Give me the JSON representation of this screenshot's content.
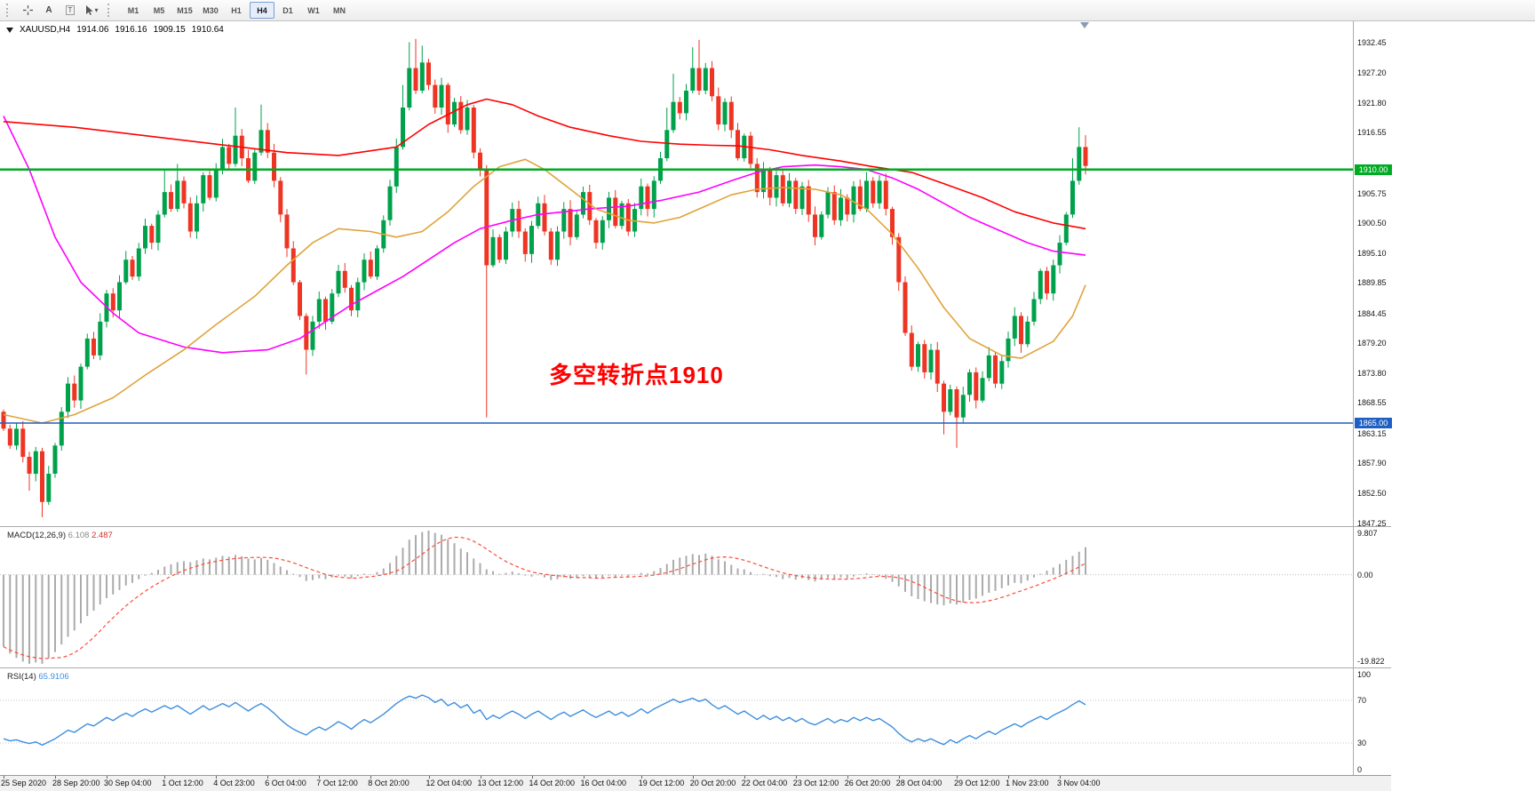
{
  "toolbar": {
    "tool_a": "A",
    "tool_t": "T",
    "dropdown_caret": "▾",
    "timeframes": [
      "M1",
      "M5",
      "M15",
      "M30",
      "H1",
      "H4",
      "D1",
      "W1",
      "MN"
    ],
    "active_timeframe": "H4"
  },
  "chart": {
    "title": {
      "symbol": "XAUUSD,H4",
      "open": "1914.06",
      "high": "1916.16",
      "low": "1909.15",
      "close": "1910.64"
    },
    "annotation": "多空转折点1910",
    "hlines": [
      {
        "price": 1910.0,
        "label": "1910.00",
        "color": "#00AB24"
      },
      {
        "price": 1865.0,
        "label": "1865.00",
        "color": "#1E5FC4"
      }
    ]
  },
  "price_axis": {
    "ticks": [
      "1932.45",
      "1927.20",
      "1921.80",
      "1916.55",
      "1905.75",
      "1900.50",
      "1895.10",
      "1889.85",
      "1884.45",
      "1879.20",
      "1873.80",
      "1868.55",
      "1863.15",
      "1857.90",
      "1852.50",
      "1847.25"
    ]
  },
  "time_axis": {
    "labels": [
      {
        "t": "25 Sep 2020",
        "bar": 0
      },
      {
        "t": "28 Sep 20:00",
        "bar": 8
      },
      {
        "t": "30 Sep 04:00",
        "bar": 16
      },
      {
        "t": "1 Oct 12:00",
        "bar": 25
      },
      {
        "t": "4 Oct 23:00",
        "bar": 33
      },
      {
        "t": "6 Oct 04:00",
        "bar": 41
      },
      {
        "t": "7 Oct 12:00",
        "bar": 49
      },
      {
        "t": "8 Oct 20:00",
        "bar": 57
      },
      {
        "t": "12 Oct 04:00",
        "bar": 66
      },
      {
        "t": "13 Oct 12:00",
        "bar": 74
      },
      {
        "t": "14 Oct 20:00",
        "bar": 82
      },
      {
        "t": "16 Oct 04:00",
        "bar": 90
      },
      {
        "t": "19 Oct 12:00",
        "bar": 99
      },
      {
        "t": "20 Oct 20:00",
        "bar": 107
      },
      {
        "t": "22 Oct 04:00",
        "bar": 115
      },
      {
        "t": "23 Oct 12:00",
        "bar": 123
      },
      {
        "t": "26 Oct 20:00",
        "bar": 131
      },
      {
        "t": "28 Oct 04:00",
        "bar": 139
      },
      {
        "t": "29 Oct 12:00",
        "bar": 148
      },
      {
        "t": "1 Nov 23:00",
        "bar": 156
      },
      {
        "t": "3 Nov 04:00",
        "bar": 164
      }
    ]
  },
  "macd_panel": {
    "label": "MACD(12,26,9)",
    "main_value": "6.108",
    "signal_value": "2.487",
    "axis": {
      "max": "9.807",
      "zero": "0.00",
      "min": "-19.822"
    }
  },
  "rsi_panel": {
    "label": "RSI(14)",
    "value": "65.9106",
    "axis": [
      {
        "t": "100",
        "v": 100
      },
      {
        "t": "70",
        "v": 70
      },
      {
        "t": "30",
        "v": 30
      },
      {
        "t": "0",
        "v": 0
      }
    ]
  },
  "colors": {
    "candle_up": "#00A14B",
    "candle_down": "#EE3524",
    "ma_red": "#FF0000",
    "ma_magenta": "#FF00FF",
    "ma_orange": "#DFA33C",
    "macd_hist": "#ABABAB",
    "macd_signal": "#FF4A3A",
    "rsi_line": "#3E8EDE",
    "annotation": "#FF0000"
  },
  "chart_data": {
    "type": "candlestick",
    "symbol": "XAUUSD",
    "period": "H4",
    "price_top": 1936.3,
    "price_bottom": 1846.7,
    "ohlc_current": [
      1914.06,
      1916.16,
      1909.15,
      1910.64
    ],
    "hline_prices": [
      1910.0,
      1865.0
    ],
    "first_open": 1867,
    "closes": [
      1864,
      1861,
      1864,
      1859,
      1856,
      1860,
      1851,
      1856,
      1861,
      1867,
      1872,
      1869,
      1875,
      1880,
      1877,
      1883,
      1888,
      1885,
      1890,
      1894,
      1891,
      1896,
      1900,
      1897,
      1902,
      1906,
      1903,
      1908,
      1904,
      1899,
      1904,
      1909,
      1905,
      1910,
      1914,
      1911,
      1916,
      1912,
      1908,
      1913,
      1917,
      1913,
      1908,
      1902,
      1896,
      1890,
      1884,
      1878,
      1883,
      1887,
      1883,
      1888,
      1892,
      1889,
      1885,
      1890,
      1894,
      1891,
      1896,
      1901,
      1907,
      1914,
      1921,
      1928,
      1924,
      1929,
      1925,
      1921,
      1925,
      1918,
      1922,
      1917,
      1921,
      1913,
      1910,
      1893,
      1898,
      1894,
      1899,
      1903,
      1899,
      1895,
      1900,
      1904,
      1899,
      1894,
      1899,
      1903,
      1898,
      1902,
      1906,
      1901,
      1897,
      1901,
      1905,
      1900,
      1904,
      1899,
      1903,
      1907,
      1903,
      1908,
      1912,
      1917,
      1922,
      1920,
      1924,
      1928,
      1924,
      1928,
      1923,
      1918,
      1922,
      1917,
      1912,
      1916,
      1911,
      1906,
      1910,
      1905,
      1909,
      1904,
      1908,
      1903,
      1907,
      1902,
      1898,
      1902,
      1906,
      1901,
      1905,
      1902,
      1907,
      1903,
      1908,
      1904,
      1908,
      1903,
      1898,
      1890,
      1881,
      1875,
      1879,
      1874,
      1878,
      1872,
      1867,
      1871,
      1866,
      1870,
      1874,
      1869,
      1873,
      1877,
      1872,
      1876,
      1880,
      1884,
      1879,
      1883,
      1887,
      1892,
      1888,
      1893,
      1897,
      1902,
      1908,
      1914,
      1910.64
    ],
    "wick_overrides": {
      "4": [
        0.9,
        3.0
      ],
      "6": [
        0.6,
        2.7
      ],
      "25": [
        4.0,
        0.5
      ],
      "27": [
        3.0,
        0.5
      ],
      "36": [
        5.0,
        0.5
      ],
      "40": [
        4.5,
        0.5
      ],
      "47": [
        0.5,
        4.4
      ],
      "62": [
        4.0,
        0.5
      ],
      "63": [
        4.6,
        0.5
      ],
      "64": [
        5.2,
        0.6
      ],
      "65": [
        3.0,
        0.5
      ],
      "75": [
        0.8,
        27
      ],
      "103": [
        4.0,
        0.5
      ],
      "104": [
        5.0,
        0.5
      ],
      "107": [
        3.7,
        0.5
      ],
      "108": [
        5.0,
        0.8
      ],
      "146": [
        0.5,
        4.0
      ],
      "148": [
        0.5,
        5.4
      ],
      "166": [
        4.0,
        0.6
      ],
      "167": [
        3.5,
        0.7
      ],
      "168": [
        2.1,
        1.5
      ]
    },
    "ma_red": [
      [
        0,
        1918.5
      ],
      [
        11,
        1917.5
      ],
      [
        22,
        1916
      ],
      [
        33,
        1914.5
      ],
      [
        44,
        1913
      ],
      [
        52,
        1912.5
      ],
      [
        61,
        1914
      ],
      [
        66,
        1918
      ],
      [
        72,
        1921.5
      ],
      [
        75,
        1922.5
      ],
      [
        79,
        1921.5
      ],
      [
        83,
        1919.5
      ],
      [
        88,
        1917.5
      ],
      [
        94,
        1916
      ],
      [
        99,
        1915
      ],
      [
        105,
        1914.5
      ],
      [
        110,
        1914.3
      ],
      [
        114,
        1914.2
      ],
      [
        119,
        1913.5
      ],
      [
        124,
        1912.5
      ],
      [
        130,
        1911.5
      ],
      [
        135,
        1910.5
      ],
      [
        141,
        1909.5
      ],
      [
        146,
        1907.5
      ],
      [
        152,
        1905
      ],
      [
        157,
        1902.5
      ],
      [
        163,
        1900.5
      ],
      [
        168,
        1899.5
      ]
    ],
    "ma_magenta": [
      [
        0,
        1919.5
      ],
      [
        4,
        1910
      ],
      [
        8,
        1898
      ],
      [
        12,
        1890
      ],
      [
        17,
        1884.5
      ],
      [
        21,
        1881
      ],
      [
        28,
        1878.5
      ],
      [
        34,
        1877.5
      ],
      [
        41,
        1878
      ],
      [
        46,
        1880
      ],
      [
        50,
        1883
      ],
      [
        54,
        1886
      ],
      [
        58,
        1888.5
      ],
      [
        62,
        1891
      ],
      [
        66,
        1894
      ],
      [
        70,
        1897
      ],
      [
        74,
        1899.5
      ],
      [
        79,
        1901
      ],
      [
        83,
        1902
      ],
      [
        87,
        1902.5
      ],
      [
        91,
        1903
      ],
      [
        97,
        1903.5
      ],
      [
        102,
        1904.5
      ],
      [
        108,
        1906
      ],
      [
        113,
        1908
      ],
      [
        117,
        1909.5
      ],
      [
        121,
        1910.5
      ],
      [
        126,
        1910.8
      ],
      [
        130,
        1910.5
      ],
      [
        134,
        1910
      ],
      [
        138,
        1908.5
      ],
      [
        142,
        1906.5
      ],
      [
        146,
        1904
      ],
      [
        150,
        1901.5
      ],
      [
        155,
        1899
      ],
      [
        159,
        1897
      ],
      [
        163,
        1895.5
      ],
      [
        168,
        1894.8
      ]
    ],
    "ma_orange": [
      [
        0,
        1866.5
      ],
      [
        6,
        1865
      ],
      [
        11,
        1866.5
      ],
      [
        17,
        1869.5
      ],
      [
        22,
        1873.5
      ],
      [
        28,
        1878
      ],
      [
        33,
        1882.5
      ],
      [
        39,
        1887.5
      ],
      [
        44,
        1893
      ],
      [
        48,
        1897
      ],
      [
        52,
        1899.5
      ],
      [
        57,
        1899
      ],
      [
        61,
        1898
      ],
      [
        65,
        1899
      ],
      [
        69,
        1902.5
      ],
      [
        73,
        1907
      ],
      [
        77,
        1910.5
      ],
      [
        81,
        1911.8
      ],
      [
        84,
        1910
      ],
      [
        88,
        1906.5
      ],
      [
        92,
        1903
      ],
      [
        97,
        1901
      ],
      [
        101,
        1900.5
      ],
      [
        105,
        1901.5
      ],
      [
        109,
        1903.5
      ],
      [
        113,
        1905.5
      ],
      [
        117,
        1906.5
      ],
      [
        121,
        1906.8
      ],
      [
        126,
        1906.5
      ],
      [
        130,
        1905.5
      ],
      [
        134,
        1903
      ],
      [
        138,
        1898.5
      ],
      [
        142,
        1892.5
      ],
      [
        146,
        1885.5
      ],
      [
        150,
        1880
      ],
      [
        155,
        1877
      ],
      [
        158,
        1876.5
      ],
      [
        163,
        1879.5
      ],
      [
        166,
        1884
      ],
      [
        168,
        1889.5
      ]
    ],
    "macd_range": {
      "max": 9.807,
      "min": -19.822
    },
    "macd_hist": [
      -16,
      -17.5,
      -18.5,
      -19.3,
      -19.8,
      -19.5,
      -19.8,
      -18.6,
      -17.2,
      -15.5,
      -13.8,
      -12.4,
      -10.8,
      -9.2,
      -8,
      -6.6,
      -5.2,
      -4.4,
      -3.4,
      -2.4,
      -1.8,
      -1,
      -0.2,
      0.4,
      1.1,
      1.8,
      2.3,
      2.8,
      3,
      2.8,
      3.2,
      3.6,
      3.4,
      3.8,
      4.2,
      4,
      4.4,
      4.1,
      3.6,
      3.4,
      3.7,
      3.3,
      2.6,
      1.8,
      1,
      0.2,
      -0.5,
      -1.4,
      -1.2,
      -0.8,
      -1,
      -0.6,
      -0.2,
      -0.4,
      -0.8,
      -0.3,
      0.2,
      0.1,
      0.6,
      1.4,
      2.6,
      4.2,
      6,
      7.8,
      8.8,
      9.5,
      9.8,
      9.3,
      8.9,
      7.9,
      7,
      5.8,
      5,
      3.6,
      2.6,
      1.2,
      0.8,
      0.2,
      0.4,
      0.7,
      0.3,
      -0.2,
      -0.4,
      -0.1,
      -0.6,
      -1.2,
      -1,
      -0.6,
      -0.9,
      -0.7,
      -0.3,
      -0.6,
      -0.9,
      -0.6,
      -0.2,
      -0.5,
      -0.2,
      -0.5,
      -0.1,
      0.4,
      0.3,
      0.8,
      1.5,
      2.4,
      3.3,
      3.8,
      4.2,
      4.6,
      4.4,
      4.7,
      4.2,
      3.4,
      3,
      2.2,
      1.4,
      1.2,
      0.6,
      -0.1,
      0.2,
      -0.3,
      -0.5,
      -1,
      -0.7,
      -1.1,
      -0.8,
      -1.2,
      -1.5,
      -1.1,
      -0.7,
      -1,
      -0.6,
      -0.8,
      -0.4,
      0.1,
      0.3,
      0.1,
      -0.3,
      -0.9,
      -1.6,
      -2.6,
      -3.8,
      -4.8,
      -5.4,
      -5.9,
      -6.3,
      -6.6,
      -6.8,
      -6.4,
      -6.6,
      -6.2,
      -5.6,
      -5.3,
      -4.7,
      -4,
      -3.6,
      -3,
      -2.4,
      -1.8,
      -1.9,
      -1.3,
      -0.6,
      0.2,
      0.9,
      1.6,
      2.4,
      3.3,
      4.2,
      5.1,
      6.108
    ],
    "rsi_levels": [
      70,
      30
    ],
    "rsi": [
      34,
      32,
      33,
      31,
      29.5,
      31,
      28,
      31,
      34,
      38,
      42,
      40,
      44,
      48,
      46,
      50,
      54,
      51,
      55,
      58,
      55,
      59,
      62,
      59,
      62,
      65,
      62,
      65,
      61,
      57,
      61,
      65,
      61,
      64,
      67,
      64,
      68,
      64,
      60,
      64,
      67,
      63,
      58,
      52,
      47,
      43,
      40,
      37.5,
      42,
      45,
      42,
      46,
      50,
      47,
      43,
      48,
      52,
      49,
      53,
      57,
      62,
      67,
      71,
      74,
      72,
      75,
      72.5,
      68,
      71,
      65,
      68,
      63,
      66,
      58,
      61,
      52,
      56,
      53,
      57,
      60,
      57,
      53,
      57,
      60,
      56,
      52,
      56,
      59,
      55,
      58,
      61,
      57,
      54,
      57,
      60,
      56,
      59,
      55,
      58,
      62,
      58,
      62,
      65,
      68,
      71,
      68,
      70,
      72,
      69,
      71,
      66,
      62,
      65,
      61,
      57,
      60,
      56,
      52,
      56,
      52,
      55,
      51,
      54,
      50,
      53,
      49,
      47,
      50,
      53,
      49,
      52,
      50,
      54,
      51,
      54,
      51,
      53,
      49,
      45,
      39,
      34,
      31,
      34,
      31.5,
      34,
      31,
      28.5,
      33,
      30,
      34,
      37,
      34,
      38,
      41,
      38,
      42,
      45,
      48,
      45,
      49,
      52,
      55,
      52,
      56,
      59,
      62,
      66,
      69.5,
      65.91
    ]
  }
}
